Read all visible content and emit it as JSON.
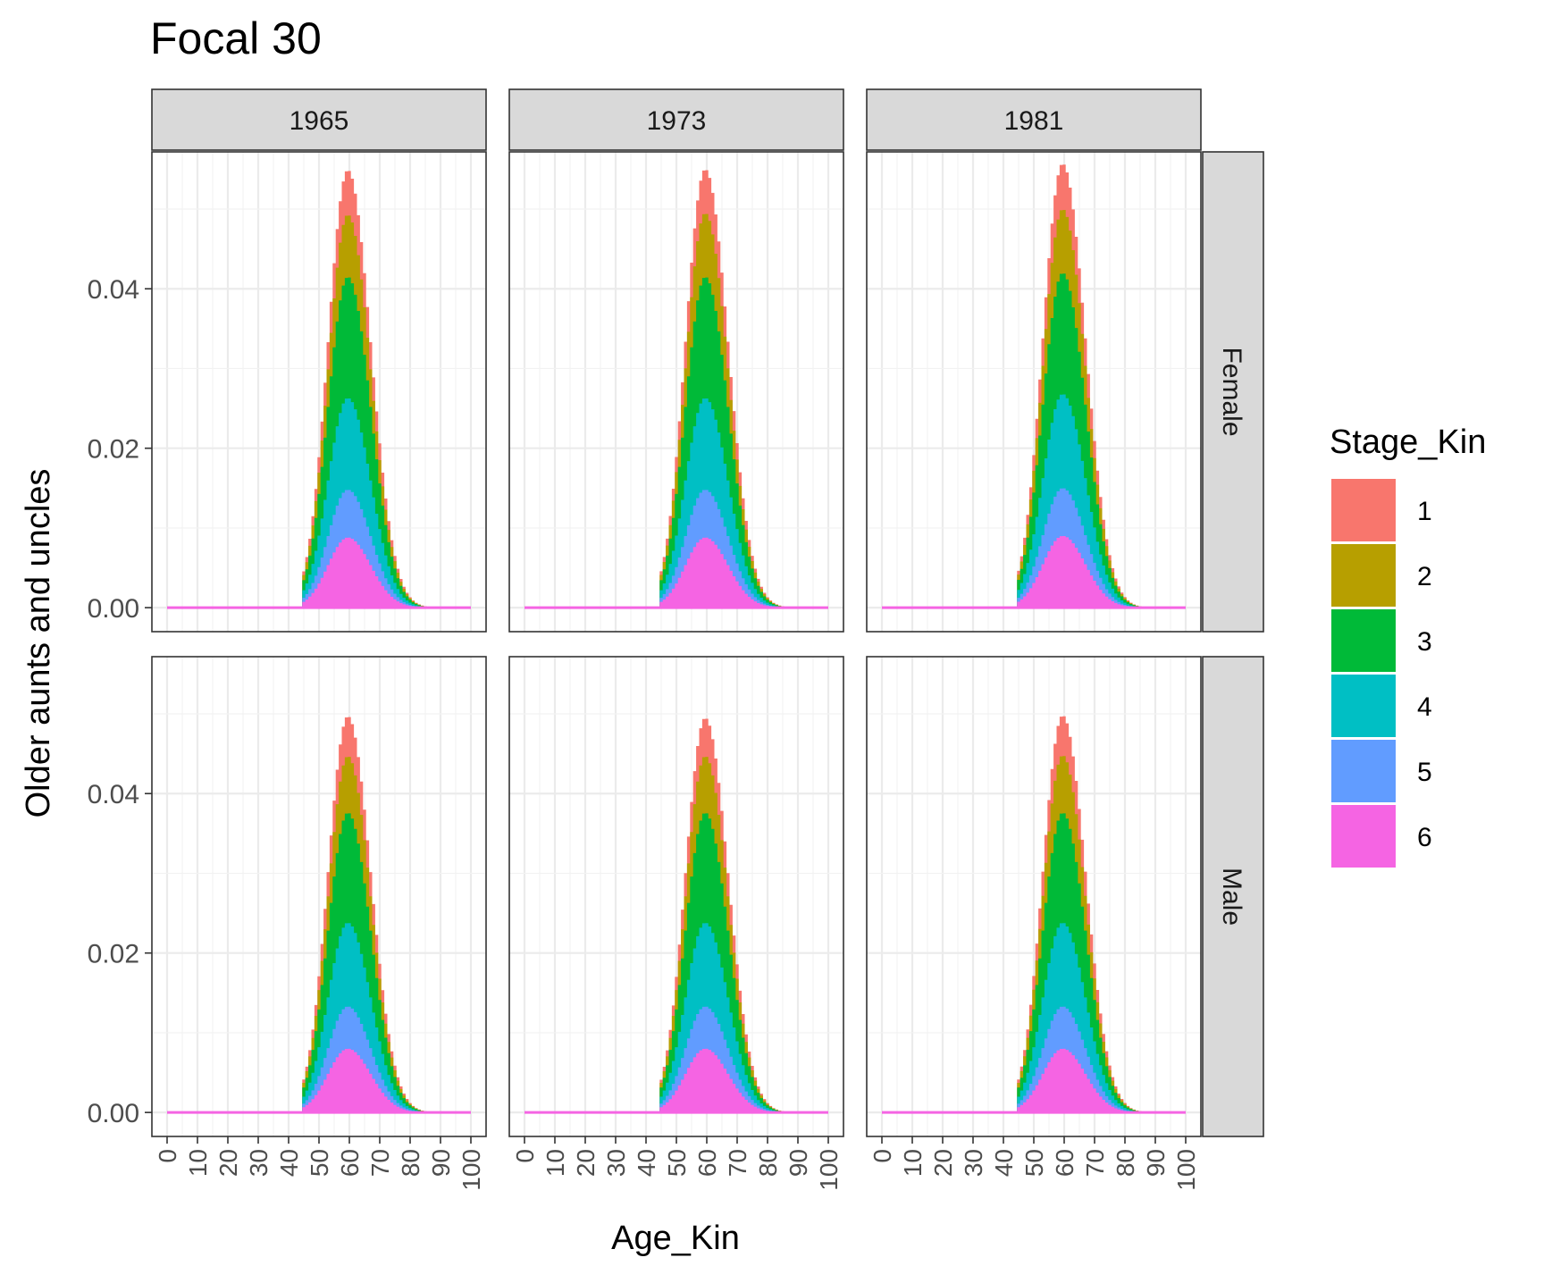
{
  "chart_data": {
    "type": "area",
    "title": "Focal 30",
    "xlabel": "Age_Kin",
    "ylabel": "Older aunts and uncles",
    "xlim": [
      0,
      100
    ],
    "ylim": [
      0,
      0.0565
    ],
    "x_ticks": [
      0,
      10,
      20,
      30,
      40,
      50,
      60,
      70,
      80,
      90,
      100
    ],
    "x_tick_labels": [
      "0",
      "10",
      "20",
      "30",
      "40",
      "50",
      "60",
      "70",
      "80",
      "90",
      "100"
    ],
    "y_ticks": [
      0,
      0.02,
      0.04
    ],
    "y_tick_labels": [
      "0.00",
      "0.02",
      "0.04"
    ],
    "grid": true,
    "stacked": true,
    "facet_cols": [
      "1965",
      "1973",
      "1981"
    ],
    "facet_rows": [
      "Female",
      "Male"
    ],
    "legend": {
      "title": "Stage_Kin",
      "position": "right",
      "entries": [
        {
          "label": "1",
          "color": "#F8766D"
        },
        {
          "label": "2",
          "color": "#B79F00"
        },
        {
          "label": "3",
          "color": "#00BA38"
        },
        {
          "label": "4",
          "color": "#00BFC4"
        },
        {
          "label": "5",
          "color": "#619CFF"
        },
        {
          "label": "6",
          "color": "#F564E3"
        }
      ]
    },
    "distribution": {
      "x_start": 45,
      "x_end": 90,
      "peak_age": 59.5,
      "sd_left": 6.5,
      "sd_right": 7.5
    },
    "panels": [
      {
        "col": "1965",
        "row": "Female",
        "cumulative_peaks": [
          0.0088,
          0.0148,
          0.0263,
          0.0415,
          0.0493,
          0.0549
        ]
      },
      {
        "col": "1973",
        "row": "Female",
        "cumulative_peaks": [
          0.0088,
          0.0148,
          0.0263,
          0.0415,
          0.0495,
          0.055
        ]
      },
      {
        "col": "1981",
        "row": "Female",
        "cumulative_peaks": [
          0.009,
          0.015,
          0.0268,
          0.042,
          0.05,
          0.0557
        ]
      },
      {
        "col": "1965",
        "row": "Male",
        "cumulative_peaks": [
          0.008,
          0.0133,
          0.0238,
          0.0376,
          0.0447,
          0.0497
        ]
      },
      {
        "col": "1973",
        "row": "Male",
        "cumulative_peaks": [
          0.008,
          0.0133,
          0.0238,
          0.0376,
          0.0447,
          0.0495
        ]
      },
      {
        "col": "1981",
        "row": "Male",
        "cumulative_peaks": [
          0.008,
          0.0133,
          0.0238,
          0.0376,
          0.0448,
          0.0498
        ]
      }
    ]
  }
}
